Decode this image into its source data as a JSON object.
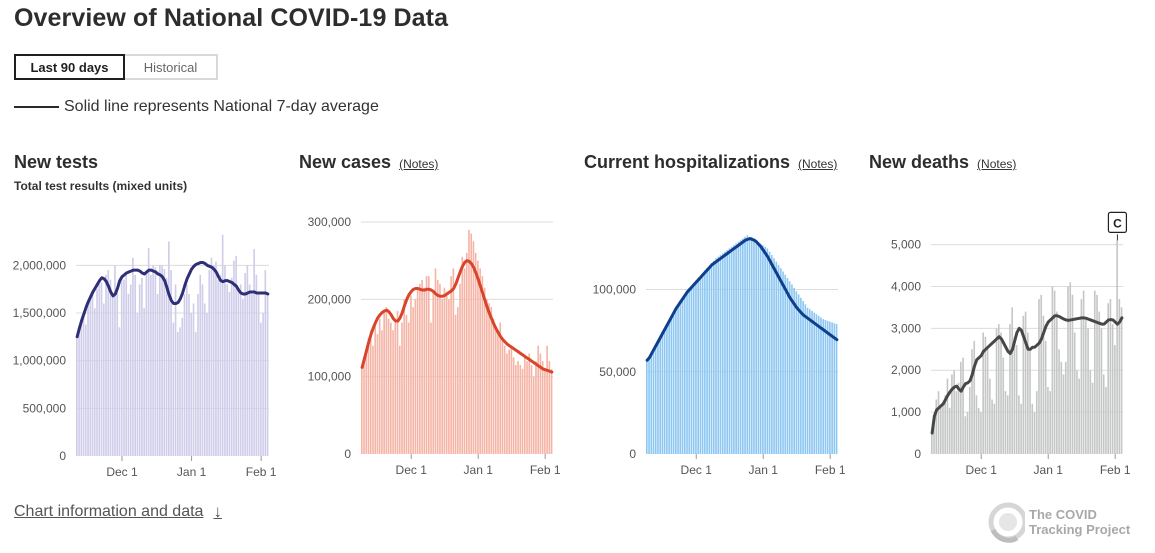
{
  "header": {
    "title": "Overview of National COVID-19 Data",
    "tabs": [
      "Last 90 days",
      "Historical"
    ],
    "legend": "Solid line represents National 7-day average"
  },
  "footer": {
    "chart_info_link": "Chart information and data",
    "brand_line1": "The COVID",
    "brand_line2": "Tracking Project"
  },
  "colors": {
    "tests_bar": "#cfcde9",
    "tests_line": "#2f2f78",
    "cases_bar": "#f5b4a6",
    "cases_line": "#d8452a",
    "hosp_bar": "#8dc7f2",
    "hosp_line": "#0f3f8c",
    "deaths_bar": "#c5c7c7",
    "deaths_line": "#474747"
  },
  "chart_data": [
    {
      "type": "bar",
      "title": "New tests",
      "subtitle": "Total test results (mixed units)",
      "notes_link": "",
      "x_ticks": [
        "Dec 1",
        "Jan 1",
        "Feb 1"
      ],
      "y_ticks": [
        "0",
        "500,000",
        "1,000,000",
        "1,500,000",
        "2,000,000"
      ],
      "y_tick_values": [
        0,
        500000,
        1000000,
        1500000,
        2000000
      ],
      "ylim": [
        0,
        2350000
      ],
      "grid": true,
      "annotation": "",
      "days": 86,
      "tick_day_index": [
        20,
        51,
        82
      ],
      "bars_daily": [
        1230000,
        1350000,
        1420000,
        1500000,
        1380000,
        1600000,
        1650000,
        1700000,
        1550000,
        1750000,
        1800000,
        1820000,
        1600000,
        1900000,
        1950000,
        1850000,
        1700000,
        2000000,
        1750000,
        1350000,
        1900000,
        1850000,
        1920000,
        1700000,
        1800000,
        2080000,
        1900000,
        1500000,
        1800000,
        1870000,
        1550000,
        1950000,
        2180000,
        1900000,
        2000000,
        1980000,
        1700000,
        2000000,
        2000000,
        1960000,
        1870000,
        2250000,
        1950000,
        1400000,
        1800000,
        1300000,
        1350000,
        1450000,
        1700000,
        1800000,
        1700000,
        1500000,
        1600000,
        1300000,
        1700000,
        1900000,
        1800000,
        1600000,
        1500000,
        1950000,
        2080000,
        2000000,
        2040000,
        1850000,
        1900000,
        2320000,
        2000000,
        1800000,
        1720000,
        1870000,
        2050000,
        2100000,
        1750000,
        1800000,
        1650000,
        1920000,
        2000000,
        1800000,
        1700000,
        2170000,
        1900000,
        1700000,
        1400000,
        1500000,
        1950000,
        1700000
      ],
      "avg_daily": [
        1250000,
        1340000,
        1420000,
        1490000,
        1560000,
        1620000,
        1670000,
        1720000,
        1760000,
        1800000,
        1840000,
        1870000,
        1860000,
        1830000,
        1780000,
        1720000,
        1680000,
        1700000,
        1760000,
        1840000,
        1880000,
        1900000,
        1920000,
        1930000,
        1940000,
        1950000,
        1950000,
        1950000,
        1940000,
        1920000,
        1910000,
        1930000,
        1950000,
        1950000,
        1940000,
        1930000,
        1910000,
        1900000,
        1880000,
        1840000,
        1770000,
        1690000,
        1630000,
        1600000,
        1600000,
        1610000,
        1650000,
        1710000,
        1790000,
        1860000,
        1910000,
        1960000,
        1990000,
        2010000,
        2020000,
        2030000,
        2030000,
        2020000,
        2000000,
        1990000,
        1980000,
        1960000,
        1930000,
        1880000,
        1840000,
        1830000,
        1840000,
        1840000,
        1830000,
        1820000,
        1800000,
        1780000,
        1740000,
        1710000,
        1700000,
        1700000,
        1710000,
        1720000,
        1720000,
        1720000,
        1710000,
        1710000,
        1710000,
        1710000,
        1710000,
        1700000
      ]
    },
    {
      "type": "bar",
      "title": "New cases",
      "subtitle": "",
      "notes_link": "(Notes)",
      "x_ticks": [
        "Dec 1",
        "Jan 1",
        "Feb 1"
      ],
      "y_ticks": [
        "0",
        "100,000",
        "200,000",
        "300,000"
      ],
      "y_tick_values": [
        0,
        100000,
        200000,
        300000
      ],
      "ylim": [
        0,
        300000
      ],
      "grid": true,
      "annotation": "",
      "days": 86,
      "tick_day_index": [
        22,
        52,
        82
      ],
      "bars_daily": [
        112000,
        125000,
        135000,
        150000,
        160000,
        140000,
        165000,
        155000,
        175000,
        160000,
        185000,
        190000,
        175000,
        170000,
        160000,
        170000,
        185000,
        140000,
        170000,
        200000,
        180000,
        170000,
        205000,
        190000,
        200000,
        215000,
        220000,
        225000,
        215000,
        230000,
        230000,
        170000,
        210000,
        240000,
        225000,
        220000,
        200000,
        215000,
        210000,
        200000,
        230000,
        240000,
        180000,
        190000,
        220000,
        255000,
        240000,
        260000,
        290000,
        285000,
        275000,
        260000,
        250000,
        240000,
        230000,
        215000,
        200000,
        195000,
        190000,
        175000,
        165000,
        160000,
        170000,
        150000,
        140000,
        130000,
        135000,
        140000,
        125000,
        115000,
        120000,
        115000,
        110000,
        125000,
        120000,
        130000,
        115000,
        100000,
        120000,
        140000,
        130000,
        120000,
        110000,
        140000,
        120000,
        110000
      ],
      "avg_daily": [
        112000,
        123000,
        134000,
        145000,
        155000,
        163000,
        170000,
        176000,
        180000,
        183000,
        185000,
        186000,
        184000,
        180000,
        175000,
        172000,
        172000,
        176000,
        183000,
        192000,
        200000,
        206000,
        210000,
        213000,
        214000,
        214000,
        213000,
        212000,
        212000,
        213000,
        213000,
        212000,
        210000,
        207000,
        205000,
        204000,
        204000,
        205000,
        207000,
        209000,
        211000,
        214000,
        220000,
        228000,
        236000,
        243000,
        248000,
        250000,
        249000,
        246000,
        241000,
        234000,
        226000,
        217000,
        208000,
        199000,
        190000,
        182000,
        175000,
        168000,
        162000,
        157000,
        152000,
        148000,
        145000,
        142000,
        140000,
        138000,
        136000,
        134000,
        132000,
        130000,
        128000,
        126000,
        124000,
        122000,
        120000,
        118000,
        116000,
        114000,
        112000,
        110000,
        109000,
        108000,
        107000,
        106000
      ]
    },
    {
      "type": "bar",
      "title": "Current hospitalizations",
      "subtitle": "",
      "notes_link": "(Notes)",
      "x_ticks": [
        "Dec 1",
        "Jan 1",
        "Feb 1"
      ],
      "y_ticks": [
        "0",
        "50,000",
        "100,000"
      ],
      "y_tick_values": [
        0,
        50000,
        100000
      ],
      "ylim": [
        0,
        135000
      ],
      "grid": true,
      "annotation": "",
      "days": 86,
      "tick_day_index": [
        22,
        52,
        82
      ],
      "bars_daily": [
        57000,
        59000,
        61500,
        64000,
        66500,
        69000,
        71500,
        74000,
        76500,
        79000,
        81500,
        84000,
        86500,
        89000,
        91000,
        93000,
        95000,
        97000,
        99000,
        101000,
        102500,
        104000,
        105500,
        107000,
        108500,
        110000,
        111500,
        113000,
        114500,
        116000,
        117500,
        119000,
        120000,
        121000,
        122000,
        123000,
        124000,
        125000,
        126000,
        127000,
        128000,
        129000,
        130000,
        131000,
        132000,
        133000,
        131500,
        132000,
        131000,
        130000,
        129000,
        128000,
        127000,
        126000,
        125000,
        123000,
        121000,
        119000,
        117000,
        115000,
        113000,
        111000,
        109000,
        107000,
        105000,
        103000,
        101000,
        99000,
        97000,
        95000,
        93000,
        91000,
        89000,
        88000,
        87000,
        86000,
        85000,
        84000,
        83000,
        82000,
        81500,
        81000,
        80500,
        80000,
        79500,
        79000
      ],
      "avg_daily": [
        57000,
        58500,
        61000,
        63500,
        66000,
        68500,
        71000,
        73500,
        76000,
        78500,
        81000,
        83500,
        86000,
        88500,
        90500,
        92500,
        94500,
        96500,
        98500,
        100000,
        101500,
        103000,
        104500,
        106000,
        107500,
        109000,
        110500,
        112000,
        113500,
        115000,
        116000,
        117000,
        118000,
        119000,
        120000,
        121000,
        122000,
        123000,
        124000,
        125000,
        126000,
        127000,
        128000,
        129000,
        130000,
        130500,
        131000,
        130500,
        130000,
        129000,
        127500,
        126000,
        124000,
        122000,
        120000,
        117500,
        115000,
        112500,
        110000,
        107500,
        105000,
        102500,
        100000,
        97500,
        95000,
        93000,
        91000,
        89000,
        87500,
        86000,
        84500,
        83500,
        82500,
        81500,
        80500,
        79500,
        78500,
        77500,
        76500,
        75500,
        74500,
        73500,
        72500,
        71500,
        70500,
        69500
      ]
    },
    {
      "type": "bar",
      "title": "New deaths",
      "subtitle": "",
      "notes_link": "(Notes)",
      "x_ticks": [
        "Dec 1",
        "Jan 1",
        "Feb 1"
      ],
      "y_ticks": [
        "0",
        "1,000",
        "2,000",
        "3,000",
        "4,000",
        "5,000"
      ],
      "y_tick_values": [
        0,
        1000,
        2000,
        3000,
        4000,
        5000
      ],
      "ylim": [
        0,
        5300
      ],
      "grid": true,
      "annotation": "C",
      "days": 86,
      "tick_day_index": [
        22,
        52,
        82
      ],
      "bars_daily": [
        500,
        900,
        1300,
        1500,
        1100,
        1200,
        1400,
        1800,
        1100,
        1900,
        2000,
        1500,
        1700,
        2200,
        2300,
        900,
        1000,
        1600,
        2500,
        2700,
        1400,
        1100,
        1000,
        2900,
        2800,
        2500,
        1800,
        1300,
        1200,
        3000,
        3100,
        2900,
        2300,
        1500,
        1400,
        3100,
        3500,
        2800,
        2600,
        1400,
        1200,
        3300,
        3400,
        2900,
        2500,
        1200,
        1000,
        1500,
        3700,
        3800,
        3300,
        2700,
        1600,
        1500,
        4000,
        3900,
        3400,
        2500,
        2200,
        1900,
        2200,
        4000,
        4100,
        3800,
        2900,
        2000,
        1800,
        3700,
        3900,
        3200,
        3000,
        2000,
        1700,
        3900,
        3800,
        3400,
        3000,
        1900,
        1600,
        3600,
        3700,
        3100,
        2600,
        5100,
        3700,
        3500
      ],
      "avg_daily": [
        500,
        900,
        1050,
        1100,
        1150,
        1200,
        1300,
        1400,
        1480,
        1550,
        1600,
        1620,
        1550,
        1500,
        1600,
        1680,
        1700,
        1750,
        1900,
        2100,
        2250,
        2300,
        2350,
        2450,
        2500,
        2550,
        2600,
        2650,
        2700,
        2750,
        2800,
        2750,
        2650,
        2550,
        2450,
        2400,
        2500,
        2700,
        2900,
        3000,
        2950,
        2800,
        2650,
        2500,
        2500,
        2550,
        2550,
        2600,
        2650,
        2750,
        2900,
        3050,
        3150,
        3200,
        3250,
        3300,
        3300,
        3280,
        3250,
        3220,
        3200,
        3190,
        3200,
        3210,
        3220,
        3230,
        3240,
        3250,
        3250,
        3240,
        3220,
        3200,
        3180,
        3160,
        3140,
        3120,
        3100,
        3100,
        3150,
        3200,
        3210,
        3200,
        3150,
        3100,
        3150,
        3250
      ]
    }
  ]
}
